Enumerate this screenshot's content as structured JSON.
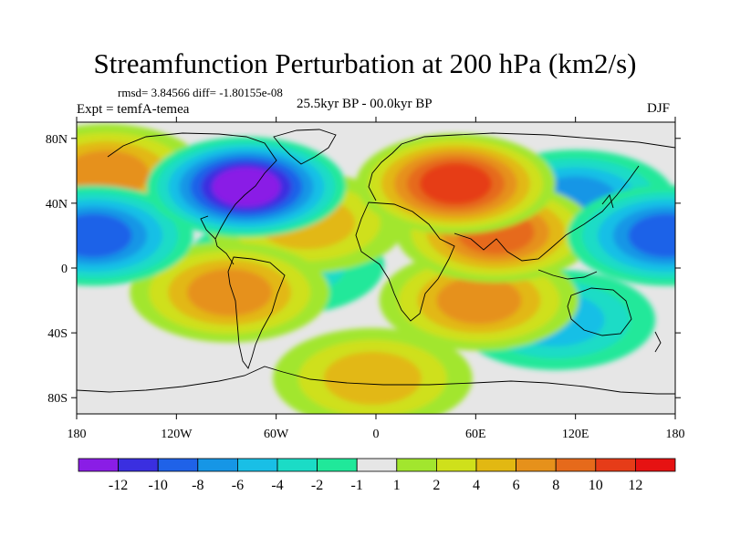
{
  "chart_data": {
    "type": "heatmap",
    "title": "Streamfunction Perturbation at 200 hPa (km2/s)",
    "stats_label": "rmsd= 3.84566 diff= -1.80155e-08",
    "experiment_label": "Expt = temfA-temea",
    "period_label": "25.5kyr BP - 00.0kyr BP",
    "season_label": "DJF",
    "x_range": [
      -180,
      180
    ],
    "y_range": [
      -90,
      90
    ],
    "x_ticks": [
      {
        "value": -180,
        "label": "180"
      },
      {
        "value": -120,
        "label": "120W"
      },
      {
        "value": -60,
        "label": "60W"
      },
      {
        "value": 0,
        "label": "0"
      },
      {
        "value": 60,
        "label": "60E"
      },
      {
        "value": 120,
        "label": "120E"
      },
      {
        "value": 180,
        "label": "180"
      }
    ],
    "y_ticks": [
      {
        "value": 80,
        "label": "80N"
      },
      {
        "value": 40,
        "label": "40N"
      },
      {
        "value": 0,
        "label": "0"
      },
      {
        "value": -40,
        "label": "40S"
      },
      {
        "value": -80,
        "label": "80S"
      }
    ],
    "colorbar": {
      "levels": [
        "-12",
        "-10",
        "-8",
        "-6",
        "-4",
        "-2",
        "-1",
        "1",
        "2",
        "4",
        "6",
        "8",
        "10",
        "12"
      ],
      "colors": [
        "#8a1de6",
        "#3a2fe0",
        "#1f62e8",
        "#1696e6",
        "#19bfe6",
        "#1bdcc6",
        "#20e89a",
        "#e6e6e6",
        "#a2e62e",
        "#cfe01b",
        "#e2b812",
        "#e6911b",
        "#e66a1b",
        "#e63c18",
        "#e61212"
      ]
    },
    "features": [
      {
        "name": "north-atlantic-low",
        "lon": -78,
        "lat": 50,
        "value": -12
      },
      {
        "name": "north-pacific-high",
        "lon": -162,
        "lat": 58,
        "value": 6
      },
      {
        "name": "eurasia-high",
        "lon": 48,
        "lat": 52,
        "value": 10
      },
      {
        "name": "middle-east-high",
        "lon": 72,
        "lat": 22,
        "value": 8
      },
      {
        "name": "atlantic-high",
        "lon": -42,
        "lat": 28,
        "value": 4
      },
      {
        "name": "south-pacific-high",
        "lon": -88,
        "lat": -15,
        "value": 6
      },
      {
        "name": "indian-ocean-high",
        "lon": 62,
        "lat": -20,
        "value": 6
      },
      {
        "name": "southern-high",
        "lon": -2,
        "lat": -68,
        "value": 4
      },
      {
        "name": "tropical-atlantic-low",
        "lon": -55,
        "lat": 2,
        "value": -2
      },
      {
        "name": "west-pacific-low",
        "lon": 120,
        "lat": 42,
        "value": -6
      },
      {
        "name": "central-pacific-low",
        "lon": -170,
        "lat": 20,
        "value": -8
      },
      {
        "name": "east-pacific-low",
        "lon": 175,
        "lat": 20,
        "value": -8
      },
      {
        "name": "southern-ocean-low",
        "lon": 108,
        "lat": -32,
        "value": -4
      }
    ]
  }
}
